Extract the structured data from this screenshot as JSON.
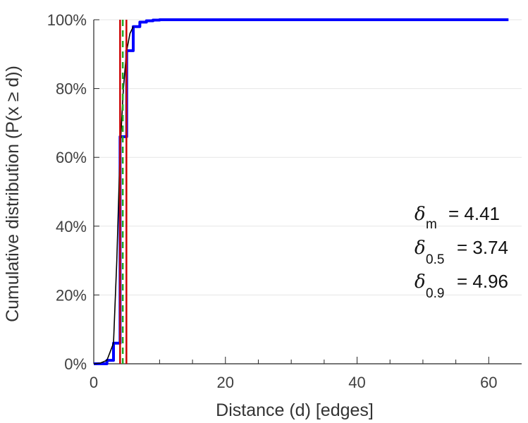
{
  "chart_data": {
    "type": "line",
    "xlabel": "Distance (d) [edges]",
    "ylabel": "Cumulative distribution (P(x  ≥ d))",
    "xlim": [
      0,
      65
    ],
    "ylim": [
      0,
      100
    ],
    "x_ticks": [
      0,
      20,
      40,
      60
    ],
    "y_ticks": [
      0,
      20,
      40,
      60,
      80,
      100
    ],
    "y_tick_labels": [
      "0%",
      "20%",
      "40%",
      "60%",
      "80%",
      "100%"
    ],
    "grid": "horizontal",
    "series": [
      {
        "color": "#0000ff",
        "step": true,
        "x": [
          0,
          2,
          3,
          4,
          5,
          6,
          7,
          8,
          9,
          10,
          12,
          15,
          20,
          30,
          40,
          50,
          63
        ],
        "y": [
          0,
          1,
          6,
          66,
          91,
          98,
          99.3,
          99.7,
          99.9,
          100,
          100,
          100,
          100,
          100,
          100,
          100,
          100
        ]
      },
      {
        "color": "#000000",
        "step": false,
        "x": [
          0,
          1,
          2,
          3,
          3.5,
          4,
          4.5,
          5,
          5.5,
          6
        ],
        "y": [
          0,
          0.2,
          1,
          6,
          30,
          62,
          80,
          91,
          96,
          98
        ]
      }
    ],
    "markers": [
      {
        "x": 4.0,
        "color": "#cc0000",
        "style": "solid"
      },
      {
        "x": 4.96,
        "color": "#cc0000",
        "style": "solid"
      },
      {
        "x": 4.41,
        "color": "#22aa22",
        "style": "dashed"
      }
    ],
    "annotations": [
      {
        "symbol": "δ",
        "sub": "m",
        "text": "= 4.41"
      },
      {
        "symbol": "δ",
        "sub": "0.5",
        "text": "= 3.74"
      },
      {
        "symbol": "δ",
        "sub": "0.9",
        "text": "= 4.96"
      }
    ]
  }
}
